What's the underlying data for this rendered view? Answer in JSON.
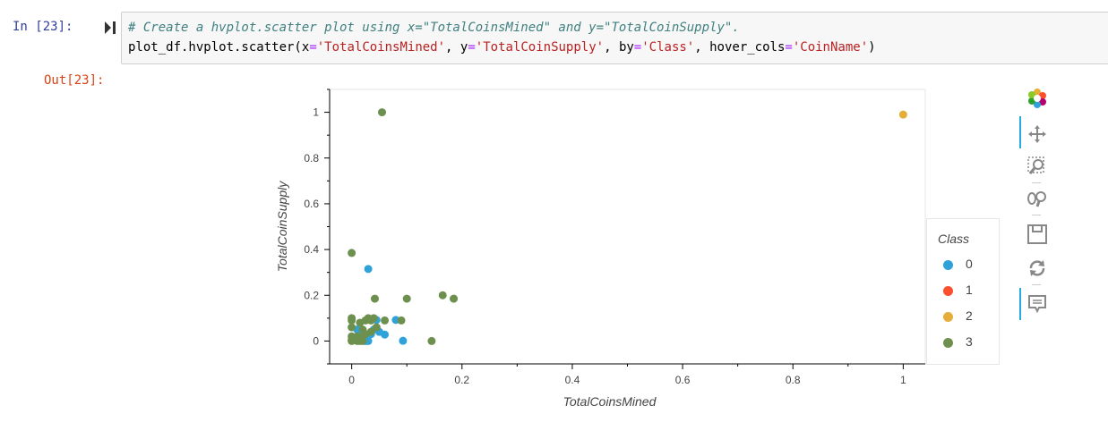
{
  "cell": {
    "in_prompt": "In [23]:",
    "out_prompt": "Out[23]:",
    "code_comment": "# Create a hvplot.scatter plot using x=\"TotalCoinsMined\" and y=\"TotalCoinSupply\".",
    "code_parts": {
      "p1": "plot_df.hvplot.scatter(",
      "k1": "x",
      "eq1": "=",
      "s1": "'TotalCoinsMined'",
      "c1": ", ",
      "k2": "y",
      "eq2": "=",
      "s2": "'TotalCoinSupply'",
      "c2": ", ",
      "k3": "by",
      "eq3": "=",
      "s3": "'Class'",
      "c3": ", ",
      "k4": "hover_cols",
      "eq4": "=",
      "s4": "'CoinName'",
      "p2": ")"
    }
  },
  "toolbar": {
    "icons": [
      "bokeh-logo-icon",
      "pan-icon",
      "box-zoom-icon",
      "wheel-zoom-icon",
      "save-icon",
      "reset-icon",
      "hover-icon"
    ]
  },
  "chart_data": {
    "type": "scatter",
    "xlabel": "TotalCoinsMined",
    "ylabel": "TotalCoinSupply",
    "xlim": [
      -0.04,
      1.04
    ],
    "ylim": [
      -0.1,
      1.1
    ],
    "xticks": [
      "0",
      "0.2",
      "0.4",
      "0.6",
      "0.8",
      "1"
    ],
    "yticks": [
      "0",
      "0.2",
      "0.4",
      "0.6",
      "0.8",
      "1"
    ],
    "grid": false,
    "legend": {
      "title": "Class",
      "position": "right"
    },
    "series": [
      {
        "name": "0",
        "color": "#30a2da",
        "points": [
          [
            0.03,
            0.315
          ],
          [
            0.045,
            0.092
          ],
          [
            0.08,
            0.092
          ],
          [
            0.06,
            0.028
          ],
          [
            0.093,
            0.001
          ],
          [
            0.01,
            0.05
          ],
          [
            0.015,
            0.02
          ],
          [
            0.02,
            0.01
          ],
          [
            0.025,
            0.0
          ],
          [
            0.035,
            0.03
          ],
          [
            0.04,
            0.05
          ],
          [
            0.05,
            0.04
          ],
          [
            0.005,
            0.005
          ],
          [
            0.03,
            0.0
          ]
        ]
      },
      {
        "name": "1",
        "color": "#fc4f30",
        "points": []
      },
      {
        "name": "2",
        "color": "#e5ae38",
        "points": [
          [
            1.0,
            0.99
          ]
        ]
      },
      {
        "name": "3",
        "color": "#6d904f",
        "points": [
          [
            0.055,
            1.0
          ],
          [
            0.0,
            0.385
          ],
          [
            0.042,
            0.185
          ],
          [
            0.1,
            0.185
          ],
          [
            0.165,
            0.2
          ],
          [
            0.185,
            0.185
          ],
          [
            0.0,
            0.1
          ],
          [
            0.0,
            0.09
          ],
          [
            0.0,
            0.06
          ],
          [
            0.0,
            0.02
          ],
          [
            0.0,
            0.005
          ],
          [
            0.0,
            0.0
          ],
          [
            0.005,
            0.01
          ],
          [
            0.01,
            0.0
          ],
          [
            0.015,
            0.0
          ],
          [
            0.02,
            0.0
          ],
          [
            0.025,
            0.09
          ],
          [
            0.03,
            0.1
          ],
          [
            0.035,
            0.09
          ],
          [
            0.04,
            0.1
          ],
          [
            0.06,
            0.09
          ],
          [
            0.09,
            0.09
          ],
          [
            0.145,
            0.0
          ],
          [
            0.02,
            0.05
          ],
          [
            0.025,
            0.03
          ],
          [
            0.015,
            0.08
          ],
          [
            0.035,
            0.04
          ],
          [
            0.01,
            0.02
          ],
          [
            0.045,
            0.06
          ],
          [
            0.02,
            0.02
          ]
        ]
      }
    ]
  }
}
